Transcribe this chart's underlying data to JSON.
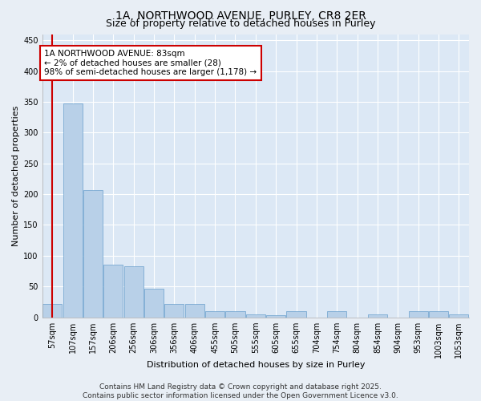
{
  "title": "1A, NORTHWOOD AVENUE, PURLEY, CR8 2ER",
  "subtitle": "Size of property relative to detached houses in Purley",
  "xlabel": "Distribution of detached houses by size in Purley",
  "ylabel": "Number of detached properties",
  "categories": [
    "57sqm",
    "107sqm",
    "157sqm",
    "206sqm",
    "256sqm",
    "306sqm",
    "356sqm",
    "406sqm",
    "455sqm",
    "505sqm",
    "555sqm",
    "605sqm",
    "655sqm",
    "704sqm",
    "754sqm",
    "804sqm",
    "854sqm",
    "904sqm",
    "953sqm",
    "1003sqm",
    "1053sqm"
  ],
  "values": [
    22,
    347,
    207,
    85,
    83,
    47,
    22,
    22,
    10,
    10,
    5,
    3,
    10,
    0,
    10,
    0,
    5,
    0,
    10,
    10,
    5
  ],
  "bar_color": "#b8d0e8",
  "bar_edge_color": "#6aa0cc",
  "highlight_color": "#cc0000",
  "annotation_text": "1A NORTHWOOD AVENUE: 83sqm\n← 2% of detached houses are smaller (28)\n98% of semi-detached houses are larger (1,178) →",
  "annotation_box_color": "#ffffff",
  "annotation_box_edge": "#cc0000",
  "ylim": [
    0,
    460
  ],
  "yticks": [
    0,
    50,
    100,
    150,
    200,
    250,
    300,
    350,
    400,
    450
  ],
  "background_color": "#e8eef5",
  "plot_bg_color": "#dce8f5",
  "grid_color": "#ffffff",
  "footer": "Contains HM Land Registry data © Crown copyright and database right 2025.\nContains public sector information licensed under the Open Government Licence v3.0.",
  "title_fontsize": 10,
  "subtitle_fontsize": 9,
  "axis_label_fontsize": 8,
  "tick_fontsize": 7,
  "annotation_fontsize": 7.5,
  "footer_fontsize": 6.5
}
